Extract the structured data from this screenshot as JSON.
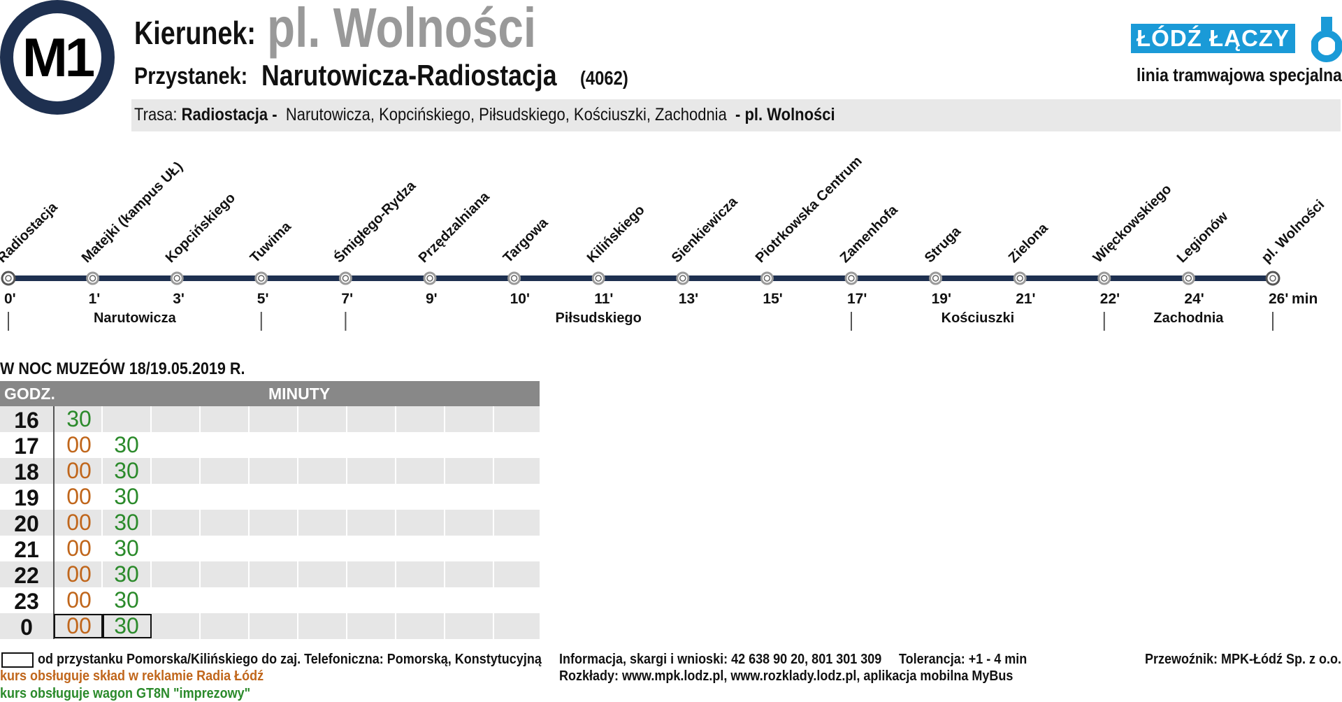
{
  "header": {
    "line": "M1",
    "direction_label": "Kierunek:",
    "direction": "pl. Wolności",
    "stop_label": "Przystanek:",
    "stop_name": "Narutowicza-Radiostacja",
    "stop_code": "(4062)",
    "route_label": "Trasa:",
    "route_start": "Radiostacja -",
    "route_streets": "Narutowicza,  Kopcińskiego,  Piłsudskiego,  Kościuszki,  Zachodnia",
    "route_end": "- pl. Wolności"
  },
  "brand": {
    "logo_text": "ŁÓDŹ ŁĄCZY",
    "subtitle": "linia tramwajowa specjalna",
    "accent": "#1a9ad7"
  },
  "stops": [
    {
      "name": "Radiostacja",
      "time": "0'"
    },
    {
      "name": "Matejki (kampus UŁ)",
      "time": "1'"
    },
    {
      "name": "Kopcińskiego",
      "time": "3'"
    },
    {
      "name": "Tuwima",
      "time": "5'"
    },
    {
      "name": "Śmigłego-Rydza",
      "time": "7'"
    },
    {
      "name": "Przędzalniana",
      "time": "9'"
    },
    {
      "name": "Targowa",
      "time": "10'"
    },
    {
      "name": "Kilińskiego",
      "time": "11'"
    },
    {
      "name": "Sienkiewicza",
      "time": "13'"
    },
    {
      "name": "Piotrkowska Centrum",
      "time": "15'"
    },
    {
      "name": "Zamenhofa",
      "time": "17'"
    },
    {
      "name": "Struga",
      "time": "19'"
    },
    {
      "name": "Zielona",
      "time": "21'"
    },
    {
      "name": "Więckowskiego",
      "time": "22'"
    },
    {
      "name": "Legionów",
      "time": "24'"
    },
    {
      "name": "pl. Wolności",
      "time": "26'"
    }
  ],
  "time_unit": "min",
  "streets": [
    {
      "name": "Narutowicza",
      "from_stop": 0,
      "to_stop": 3
    },
    {
      "name": "Piłsudskiego",
      "from_stop": 4,
      "to_stop": 10
    },
    {
      "name": "Kościuszki",
      "from_stop": 10,
      "to_stop": 13
    },
    {
      "name": "Zachodnia",
      "from_stop": 13,
      "to_stop": 15
    }
  ],
  "timetable": {
    "title": "W NOC MUZEÓW 18/19.05.2019 R.",
    "hour_header": "GODZ.",
    "minutes_header": "MINUTY",
    "rows": [
      {
        "hour": "16",
        "departures": [
          {
            "min": "30",
            "kind": "green",
            "boxed": false
          }
        ]
      },
      {
        "hour": "17",
        "departures": [
          {
            "min": "00",
            "kind": "orange",
            "boxed": false
          },
          {
            "min": "30",
            "kind": "green",
            "boxed": false
          }
        ]
      },
      {
        "hour": "18",
        "departures": [
          {
            "min": "00",
            "kind": "orange",
            "boxed": false
          },
          {
            "min": "30",
            "kind": "green",
            "boxed": false
          }
        ]
      },
      {
        "hour": "19",
        "departures": [
          {
            "min": "00",
            "kind": "orange",
            "boxed": false
          },
          {
            "min": "30",
            "kind": "green",
            "boxed": false
          }
        ]
      },
      {
        "hour": "20",
        "departures": [
          {
            "min": "00",
            "kind": "orange",
            "boxed": false
          },
          {
            "min": "30",
            "kind": "green",
            "boxed": false
          }
        ]
      },
      {
        "hour": "21",
        "departures": [
          {
            "min": "00",
            "kind": "orange",
            "boxed": false
          },
          {
            "min": "30",
            "kind": "green",
            "boxed": false
          }
        ]
      },
      {
        "hour": "22",
        "departures": [
          {
            "min": "00",
            "kind": "orange",
            "boxed": false
          },
          {
            "min": "30",
            "kind": "green",
            "boxed": false
          }
        ]
      },
      {
        "hour": "23",
        "departures": [
          {
            "min": "00",
            "kind": "orange",
            "boxed": false
          },
          {
            "min": "30",
            "kind": "green",
            "boxed": false
          }
        ]
      },
      {
        "hour": "0",
        "departures": [
          {
            "min": "00",
            "kind": "orange",
            "boxed": true
          },
          {
            "min": "30",
            "kind": "green",
            "boxed": true
          }
        ]
      }
    ]
  },
  "legend": {
    "boxed": "od przystanku Pomorska/Kilińskiego do zaj. Telefoniczna: Pomorską, Konstytucyjną",
    "orange": "kurs obsługuje skład w reklamie Radia Łódź",
    "green": "kurs obsługuje wagon GT8N \"imprezowy\""
  },
  "footer": {
    "info": "Informacja, skargi i wnioski: 42 638 90 20, 801 301 309",
    "tolerance": "Tolerancja: +1 - 4 min",
    "carrier": "Przewoźnik: MPK-Łódź Sp. z o.o.",
    "schedules": "Rozkłady: www.mpk.lodz.pl, www.rozklady.lodz.pl, aplikacja mobilna MyBus"
  },
  "colors": {
    "line": "#1e3050",
    "orange": "#c0661b",
    "green": "#2b8a2b",
    "header_bg": "#888888"
  }
}
